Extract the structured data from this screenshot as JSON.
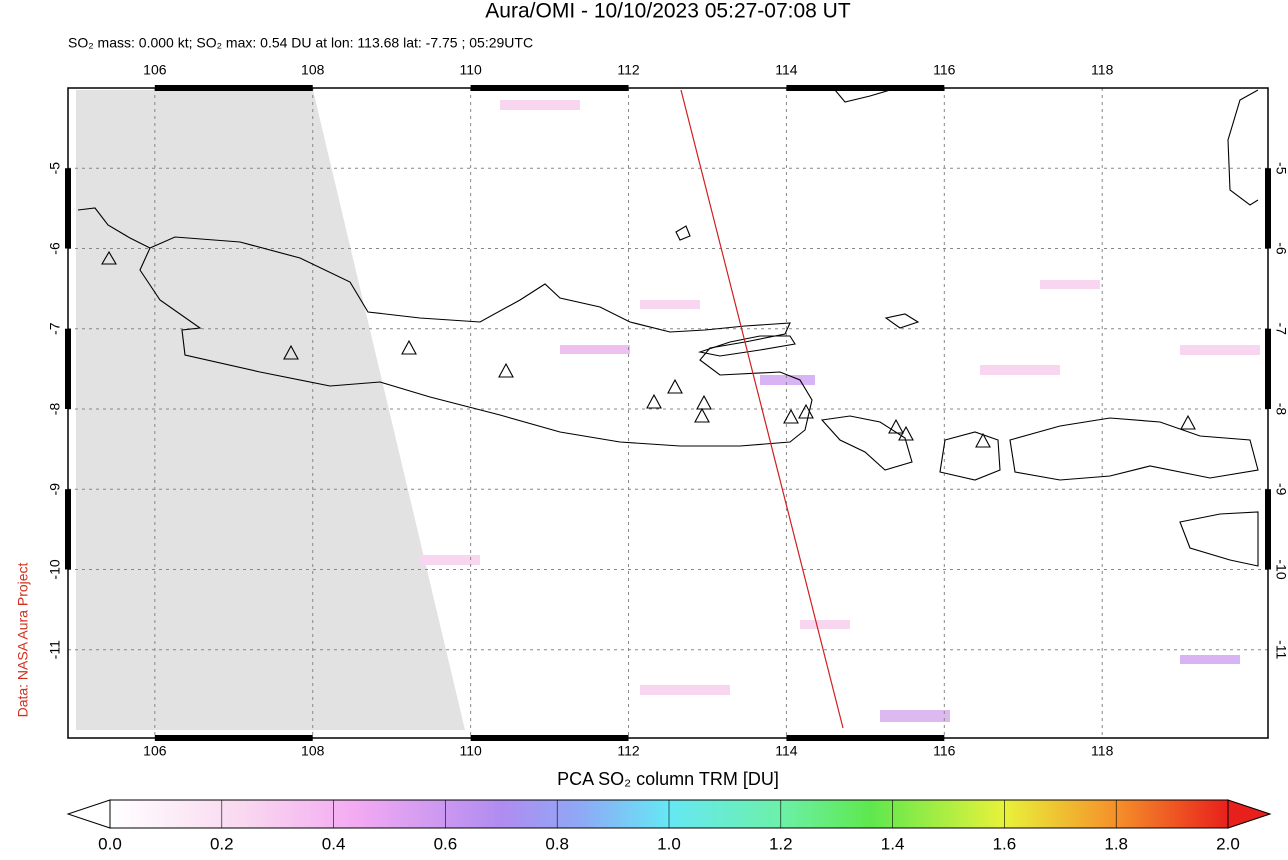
{
  "map": {
    "title": "Aura/OMI - 10/10/2023 05:27-07:08 UT",
    "subtitle": "SO₂ mass: 0.000 kt; SO₂ max: 0.54 DU at lon: 113.68 lat: -7.75 ; 05:29UTC",
    "credit": "Data: NASA Aura Project",
    "xlim": [
      104.9,
      120.1
    ],
    "ylim": [
      -12.1,
      -4.0
    ],
    "lon_ticks": [
      106,
      108,
      110,
      112,
      114,
      116,
      118
    ],
    "lat_ticks": [
      -5,
      -6,
      -7,
      -8,
      -9,
      -10,
      -11
    ],
    "colorbar": {
      "label": "PCA SO₂ column TRM [DU]",
      "range": [
        0,
        2
      ],
      "ticks": [
        {
          "value": 0,
          "label": "0.0"
        },
        {
          "value": 0.2,
          "label": "0.2"
        },
        {
          "value": 0.4,
          "label": "0.4"
        },
        {
          "value": 0.6,
          "label": "0.6"
        },
        {
          "value": 0.8,
          "label": "0.8"
        },
        {
          "value": 1,
          "label": "1.0"
        },
        {
          "value": 1.2,
          "label": "1.2"
        },
        {
          "value": 1.4,
          "label": "1.4"
        },
        {
          "value": 1.6,
          "label": "1.6"
        },
        {
          "value": 1.8,
          "label": "1.8"
        },
        {
          "value": 2,
          "label": "2.0"
        }
      ]
    }
  }
}
